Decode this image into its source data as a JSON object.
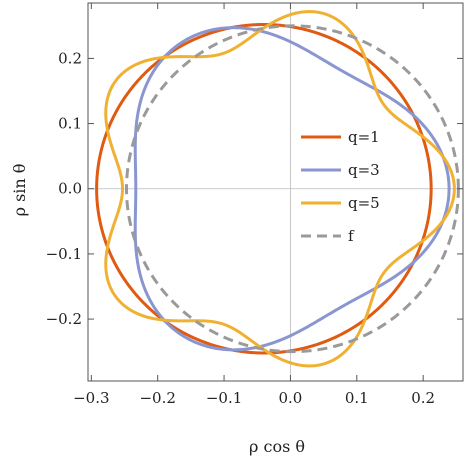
{
  "chart_data": {
    "type": "line",
    "title": "",
    "xlabel": "ρ cos θ",
    "ylabel": "ρ sin θ",
    "xlim": [
      -0.305,
      0.26
    ],
    "ylim": [
      -0.295,
      0.285
    ],
    "x_ticks": [
      -0.3,
      -0.2,
      -0.1,
      0.0,
      0.1,
      0.2
    ],
    "x_tick_labels": [
      "−0.3",
      "−0.2",
      "−0.1",
      "0.0",
      "0.1",
      "0.2"
    ],
    "y_ticks": [
      -0.2,
      -0.1,
      0.0,
      0.1,
      0.2
    ],
    "y_tick_labels": [
      "−0.2",
      "−0.1",
      "0.0",
      "0.1",
      "0.2"
    ],
    "grid": false,
    "center_lines": true,
    "legend_position": "center-right",
    "series": [
      {
        "name": "q=1",
        "color": "#e05a12",
        "dash": "solid",
        "params": {
          "cx": -0.04,
          "r": 0.252,
          "amp": 0,
          "k": 0
        }
      },
      {
        "name": "q=3",
        "color": "#8a96cf",
        "dash": "solid",
        "params": {
          "cx": -0.025,
          "r": 0.236,
          "amp": 0.028,
          "k": 3
        }
      },
      {
        "name": "q=5",
        "color": "#f0b132",
        "dash": "solid",
        "params": {
          "cx": -0.035,
          "r": 0.25,
          "amp": 0.032,
          "k": 5
        }
      },
      {
        "name": "f",
        "color": "#9a9a9a",
        "dash": "dashed",
        "params": {
          "cx": 0.003,
          "r": 0.25,
          "amp": 0,
          "k": 0
        }
      }
    ]
  }
}
